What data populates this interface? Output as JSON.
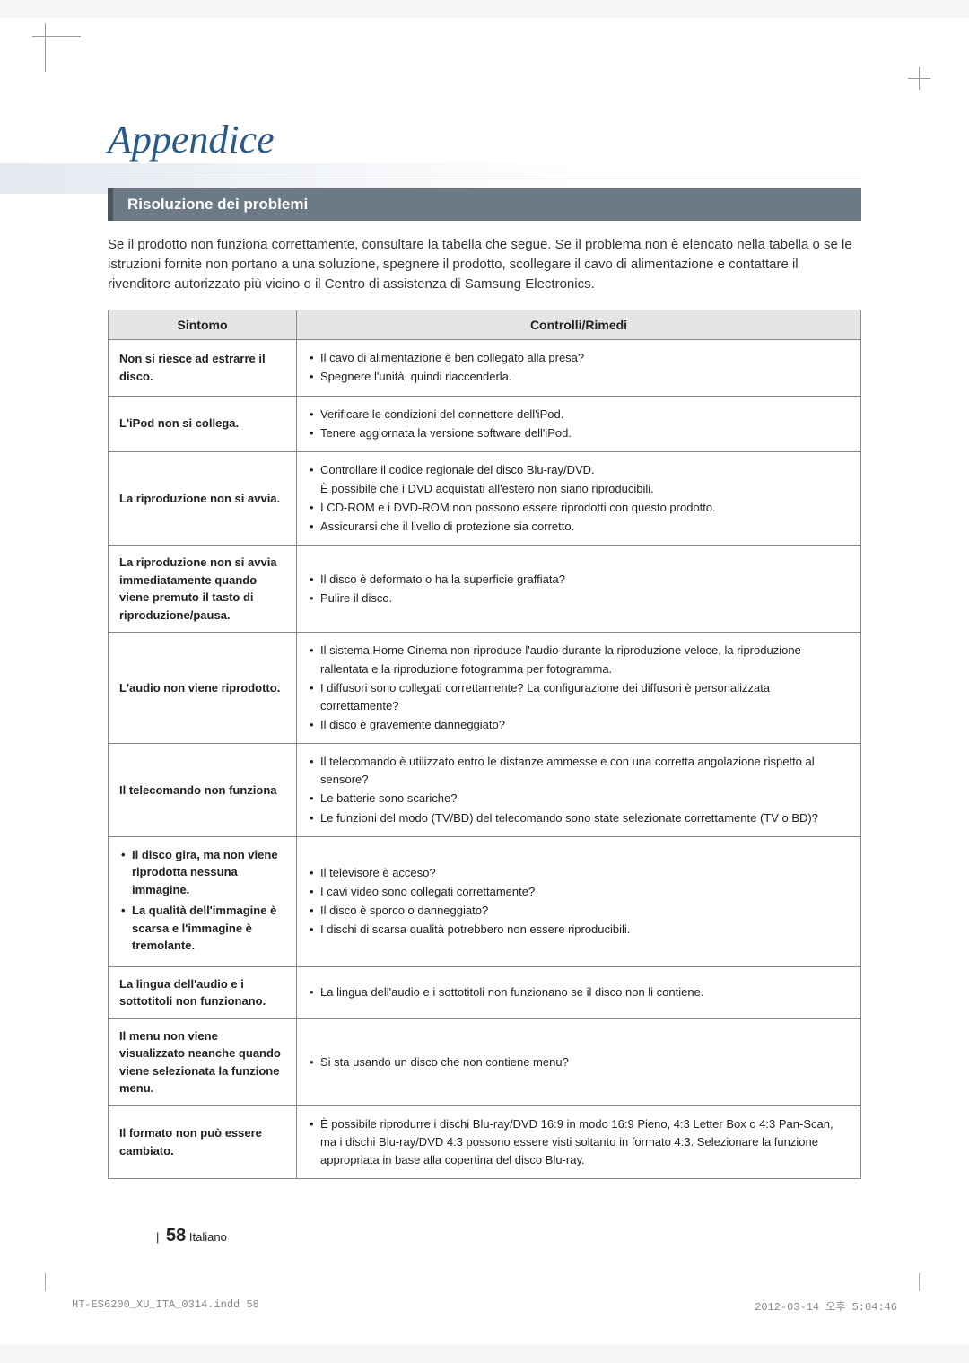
{
  "title": "Appendice",
  "section_heading": "Risoluzione dei problemi",
  "intro": "Se il prodotto non funziona correttamente, consultare la tabella che segue. Se il problema non è elencato nella tabella o se le istruzioni fornite non portano a una soluzione, spegnere il prodotto, scollegare il cavo di alimentazione e contattare il rivenditore autorizzato più vicino o il Centro di assistenza di Samsung Electronics.",
  "table": {
    "headers": {
      "symptom": "Sintomo",
      "remedy": "Controlli/Rimedi"
    },
    "rows": [
      {
        "symptom": "Non si riesce ad estrarre il disco.",
        "remedies": [
          "Il cavo di alimentazione è ben collegato alla presa?",
          "Spegnere l'unità, quindi riaccenderla."
        ]
      },
      {
        "symptom": "L'iPod non si collega.",
        "remedies": [
          "Verificare le condizioni del connettore dell'iPod.",
          "Tenere aggiornata la versione software dell'iPod."
        ]
      },
      {
        "symptom": "La riproduzione non si avvia.",
        "remedies": [
          "Controllare il codice regionale del disco Blu-ray/DVD.",
          "È possibile che i DVD acquistati all'estero non siano riproducibili.",
          "I CD-ROM e i DVD-ROM non possono essere riprodotti con questo prodotto.",
          "Assicurarsi che il livello di protezione sia corretto."
        ],
        "indent_indices": [
          1
        ]
      },
      {
        "symptom": "La riproduzione non si avvia immediatamente quando viene premuto il tasto di riproduzione/pausa.",
        "remedies": [
          "Il disco è deformato o ha la superficie graffiata?",
          "Pulire il disco."
        ]
      },
      {
        "symptom": "L'audio non viene riprodotto.",
        "remedies": [
          "Il sistema Home Cinema non riproduce l'audio durante la riproduzione veloce, la riproduzione rallentata e la riproduzione fotogramma per fotogramma.",
          "I diffusori sono collegati correttamente? La configurazione dei diffusori è personalizzata correttamente?",
          "Il disco è gravemente danneggiato?"
        ]
      },
      {
        "symptom": "Il telecomando non funziona",
        "remedies": [
          "Il telecomando è utilizzato entro le distanze ammesse e con una corretta angolazione rispetto al sensore?",
          "Le batterie sono scariche?",
          "Le funzioni del modo (TV/BD) del telecomando sono state selezionate correttamente (TV o BD)?"
        ]
      },
      {
        "symptom_list": [
          "Il disco gira, ma non viene riprodotta nessuna immagine.",
          "La qualità dell'immagine è scarsa e l'immagine è tremolante."
        ],
        "remedies": [
          "Il televisore è acceso?",
          "I cavi video sono collegati correttamente?",
          "Il disco è sporco o danneggiato?",
          "I dischi di scarsa qualità potrebbero non essere riproducibili."
        ]
      },
      {
        "symptom": "La lingua dell'audio e i sottotitoli non funzionano.",
        "remedies": [
          "La lingua dell'audio e i sottotitoli non funzionano se il disco non li contiene."
        ]
      },
      {
        "symptom": "Il menu non viene visualizzato neanche quando viene selezionata la funzione menu.",
        "remedies": [
          "Si sta usando un disco che non contiene menu?"
        ]
      },
      {
        "symptom": "Il formato non può essere cambiato.",
        "remedies": [
          "È possibile riprodurre i dischi Blu-ray/DVD 16:9 in modo 16:9 Pieno, 4:3 Letter Box o 4:3 Pan-Scan, ma i dischi Blu-ray/DVD 4:3 possono essere visti soltanto in formato 4:3. Selezionare la funzione appropriata in base alla copertina del disco Blu-ray."
        ]
      }
    ]
  },
  "footer": {
    "page_num": "58",
    "lang": "Italiano",
    "sep": "|"
  },
  "print": {
    "left": "HT-ES6200_XU_ITA_0314.indd   58",
    "right": "2012-03-14   오후 5:04:46"
  },
  "colors": {
    "title": "#2a5a8a",
    "section_bg": "#6b7a85",
    "section_border": "#4a5560",
    "th_bg": "#e5e5e5",
    "border": "#888"
  }
}
